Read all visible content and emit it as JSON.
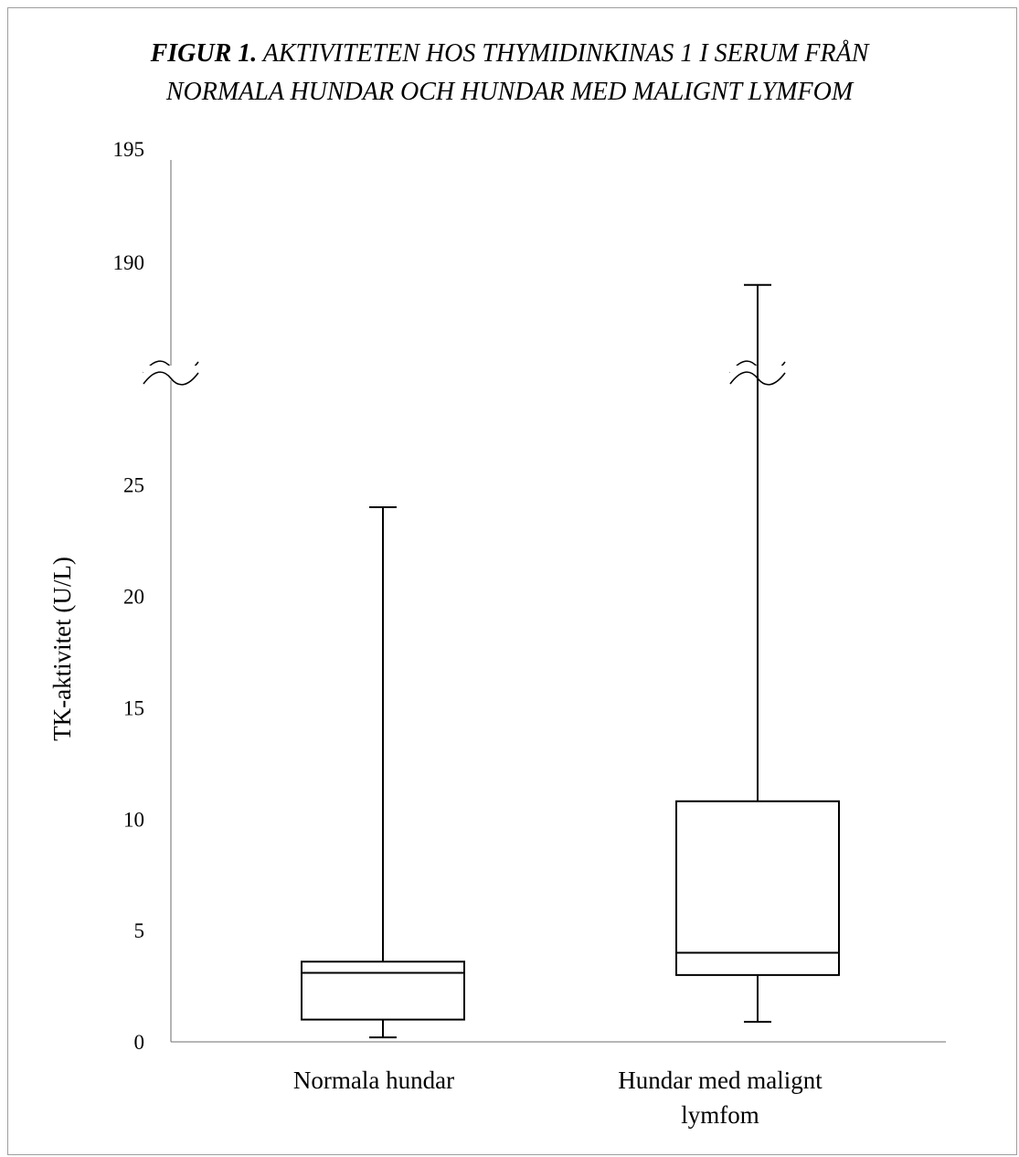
{
  "chart_data": {
    "type": "boxplot",
    "title_lead": "FIGUR 1.",
    "title_rest_line1": "AKTIVITETEN HOS THYMIDINKINAS 1 I SERUM FRÅN",
    "title_line2": "NORMALA HUNDAR OCH HUNDAR MED MALIGNT LYMFOM",
    "ylabel": "TK-aktivitet (U/L)",
    "y_axis_break": {
      "lower_range": [
        0,
        29
      ],
      "upper_range": [
        185,
        195
      ]
    },
    "y_ticks_lower": [
      0,
      5,
      10,
      15,
      20,
      25
    ],
    "y_ticks_upper": [
      190,
      195
    ],
    "series": [
      {
        "category": "Normala hundar",
        "category_lines": [
          "Normala hundar"
        ],
        "min": 0.2,
        "q1": 1.0,
        "median": 3.1,
        "q3": 3.6,
        "max": 24.0
      },
      {
        "category": "Hundar med malignt lymfom",
        "category_lines": [
          "Hundar med malignt",
          "lymfom"
        ],
        "min": 0.9,
        "q1": 3.0,
        "median": 4.0,
        "q3": 10.8,
        "max": 189.0
      }
    ],
    "grid": false,
    "legend": "none"
  }
}
